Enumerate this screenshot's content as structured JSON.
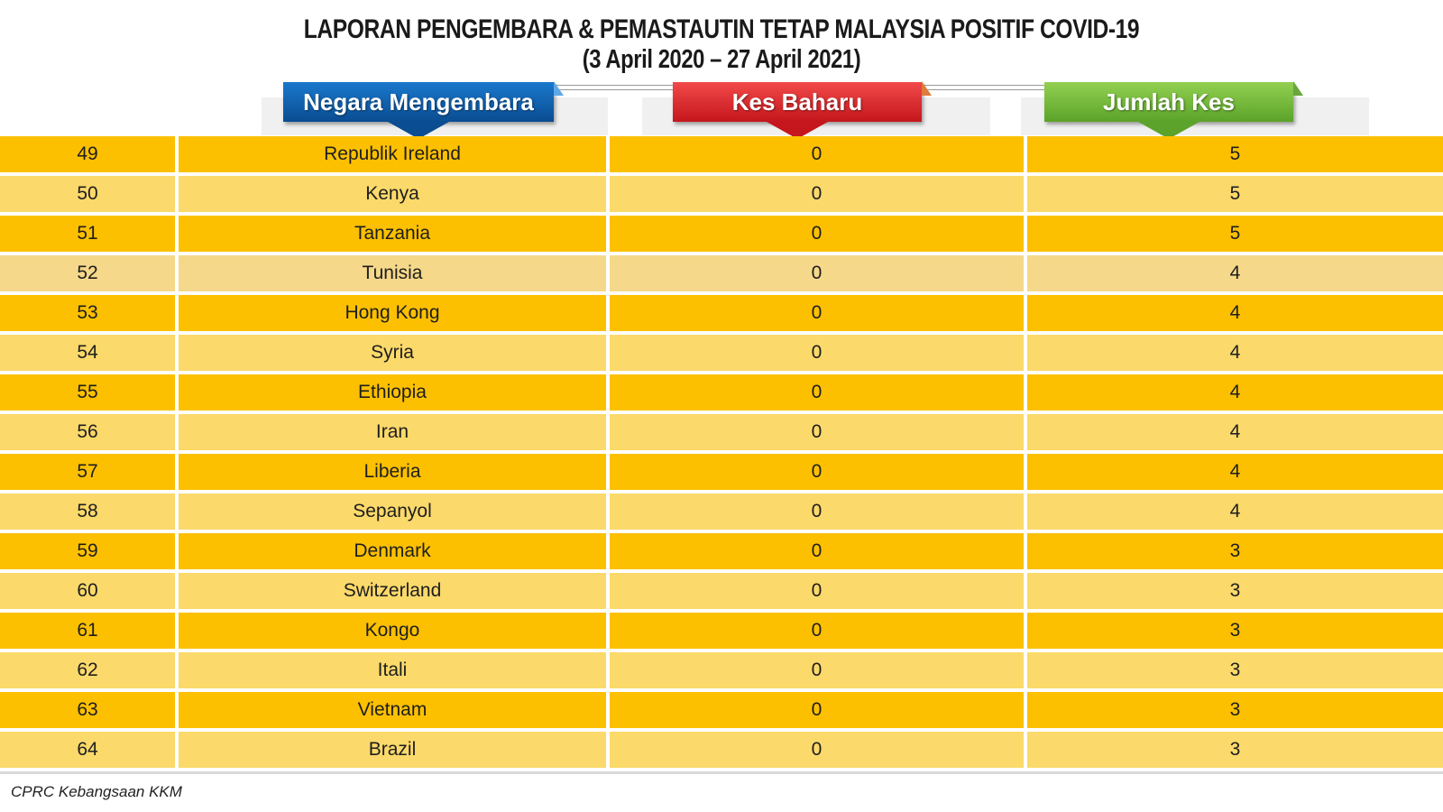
{
  "title": {
    "line1": "LAPORAN PENGEMBARA & PEMASTAUTIN TETAP MALAYSIA POSITIF COVID-19",
    "line2": "(3 April 2020 – 27 April 2021)"
  },
  "headers": {
    "country": "Negara Mengembara",
    "new_cases": "Kes Baharu",
    "total_cases": "Jumlah Kes"
  },
  "colors": {
    "row_dark": "#fcc000",
    "row_light": "#fbd96a",
    "header_blue": "#0a4d92",
    "header_red": "#c4161c",
    "header_green": "#5ba32a"
  },
  "rows": [
    {
      "no": "49",
      "country": "Republik Ireland",
      "new": "0",
      "total": "5"
    },
    {
      "no": "50",
      "country": "Kenya",
      "new": "0",
      "total": "5"
    },
    {
      "no": "51",
      "country": "Tanzania",
      "new": "0",
      "total": "5"
    },
    {
      "no": "52",
      "country": "Tunisia",
      "new": "0",
      "total": "4"
    },
    {
      "no": "53",
      "country": "Hong Kong",
      "new": "0",
      "total": "4"
    },
    {
      "no": "54",
      "country": "Syria",
      "new": "0",
      "total": "4"
    },
    {
      "no": "55",
      "country": "Ethiopia",
      "new": "0",
      "total": "4"
    },
    {
      "no": "56",
      "country": "Iran",
      "new": "0",
      "total": "4"
    },
    {
      "no": "57",
      "country": "Liberia",
      "new": "0",
      "total": "4"
    },
    {
      "no": "58",
      "country": "Sepanyol",
      "new": "0",
      "total": "4"
    },
    {
      "no": "59",
      "country": "Denmark",
      "new": "0",
      "total": "3"
    },
    {
      "no": "60",
      "country": "Switzerland",
      "new": "0",
      "total": "3"
    },
    {
      "no": "61",
      "country": "Kongo",
      "new": "0",
      "total": "3"
    },
    {
      "no": "62",
      "country": "Itali",
      "new": "0",
      "total": "3"
    },
    {
      "no": "63",
      "country": "Vietnam",
      "new": "0",
      "total": "3"
    },
    {
      "no": "64",
      "country": "Brazil",
      "new": "0",
      "total": "3"
    }
  ],
  "footer": "CPRC Kebangsaan KKM"
}
